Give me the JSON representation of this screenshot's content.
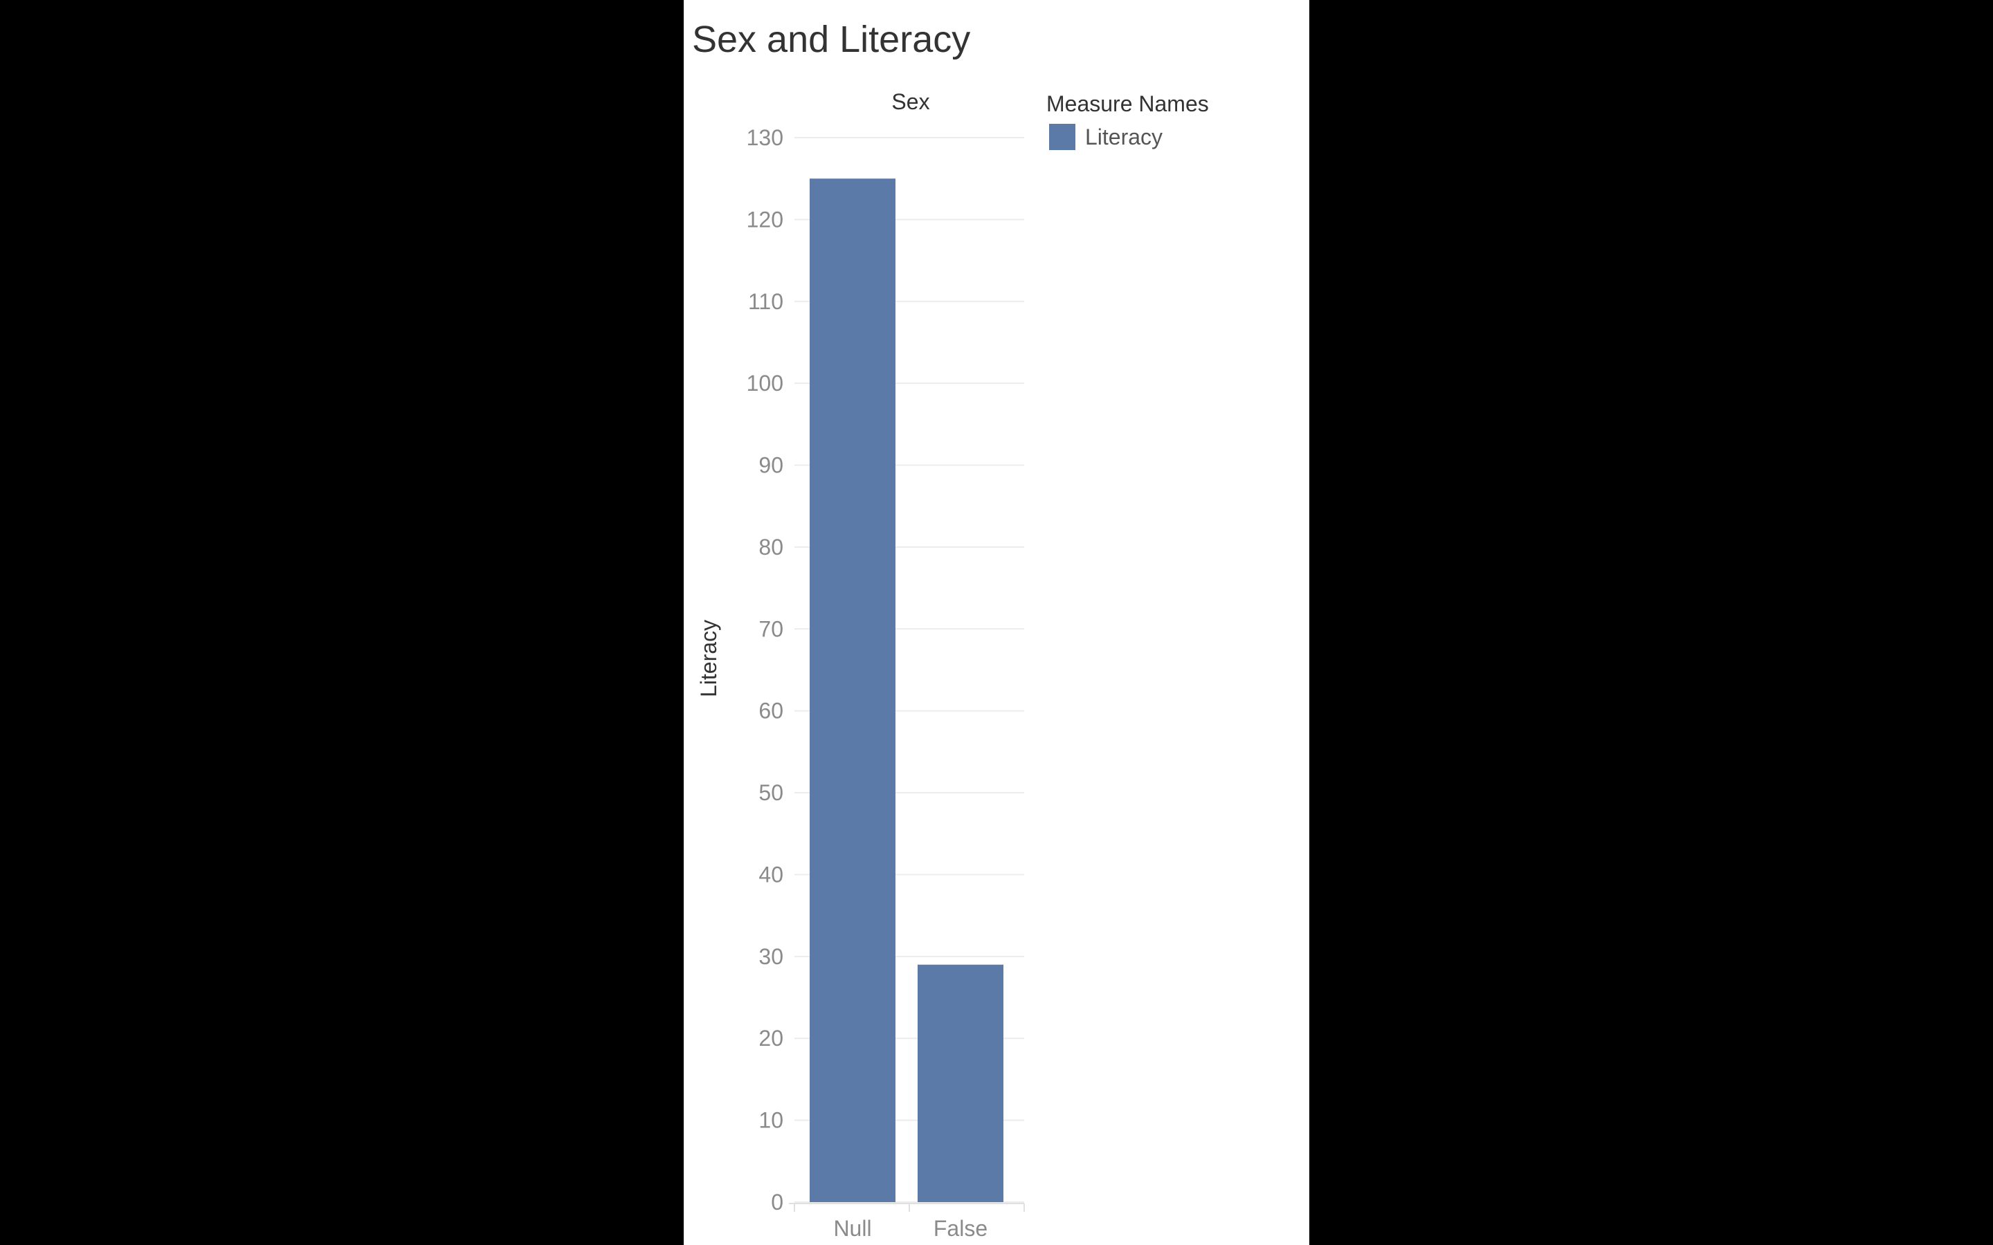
{
  "chart_data": {
    "type": "bar",
    "title": "Sex and Literacy",
    "column_header": "Sex",
    "xlabel": "",
    "ylabel": "Literacy",
    "categories": [
      "Null",
      "False"
    ],
    "series": [
      {
        "name": "Literacy",
        "values": [
          125,
          29
        ]
      }
    ],
    "ylim": [
      0,
      130
    ],
    "yticks": [
      0,
      10,
      20,
      30,
      40,
      50,
      60,
      70,
      80,
      90,
      100,
      110,
      120,
      130
    ],
    "grid": true,
    "legend": {
      "title": "Measure Names",
      "placement": "right",
      "entries": [
        "Literacy"
      ]
    },
    "colors": {
      "bar": "#5b7aa7",
      "grid": "#ececec",
      "tick_label": "#8a8a8a",
      "axis_label": "#333333"
    }
  }
}
